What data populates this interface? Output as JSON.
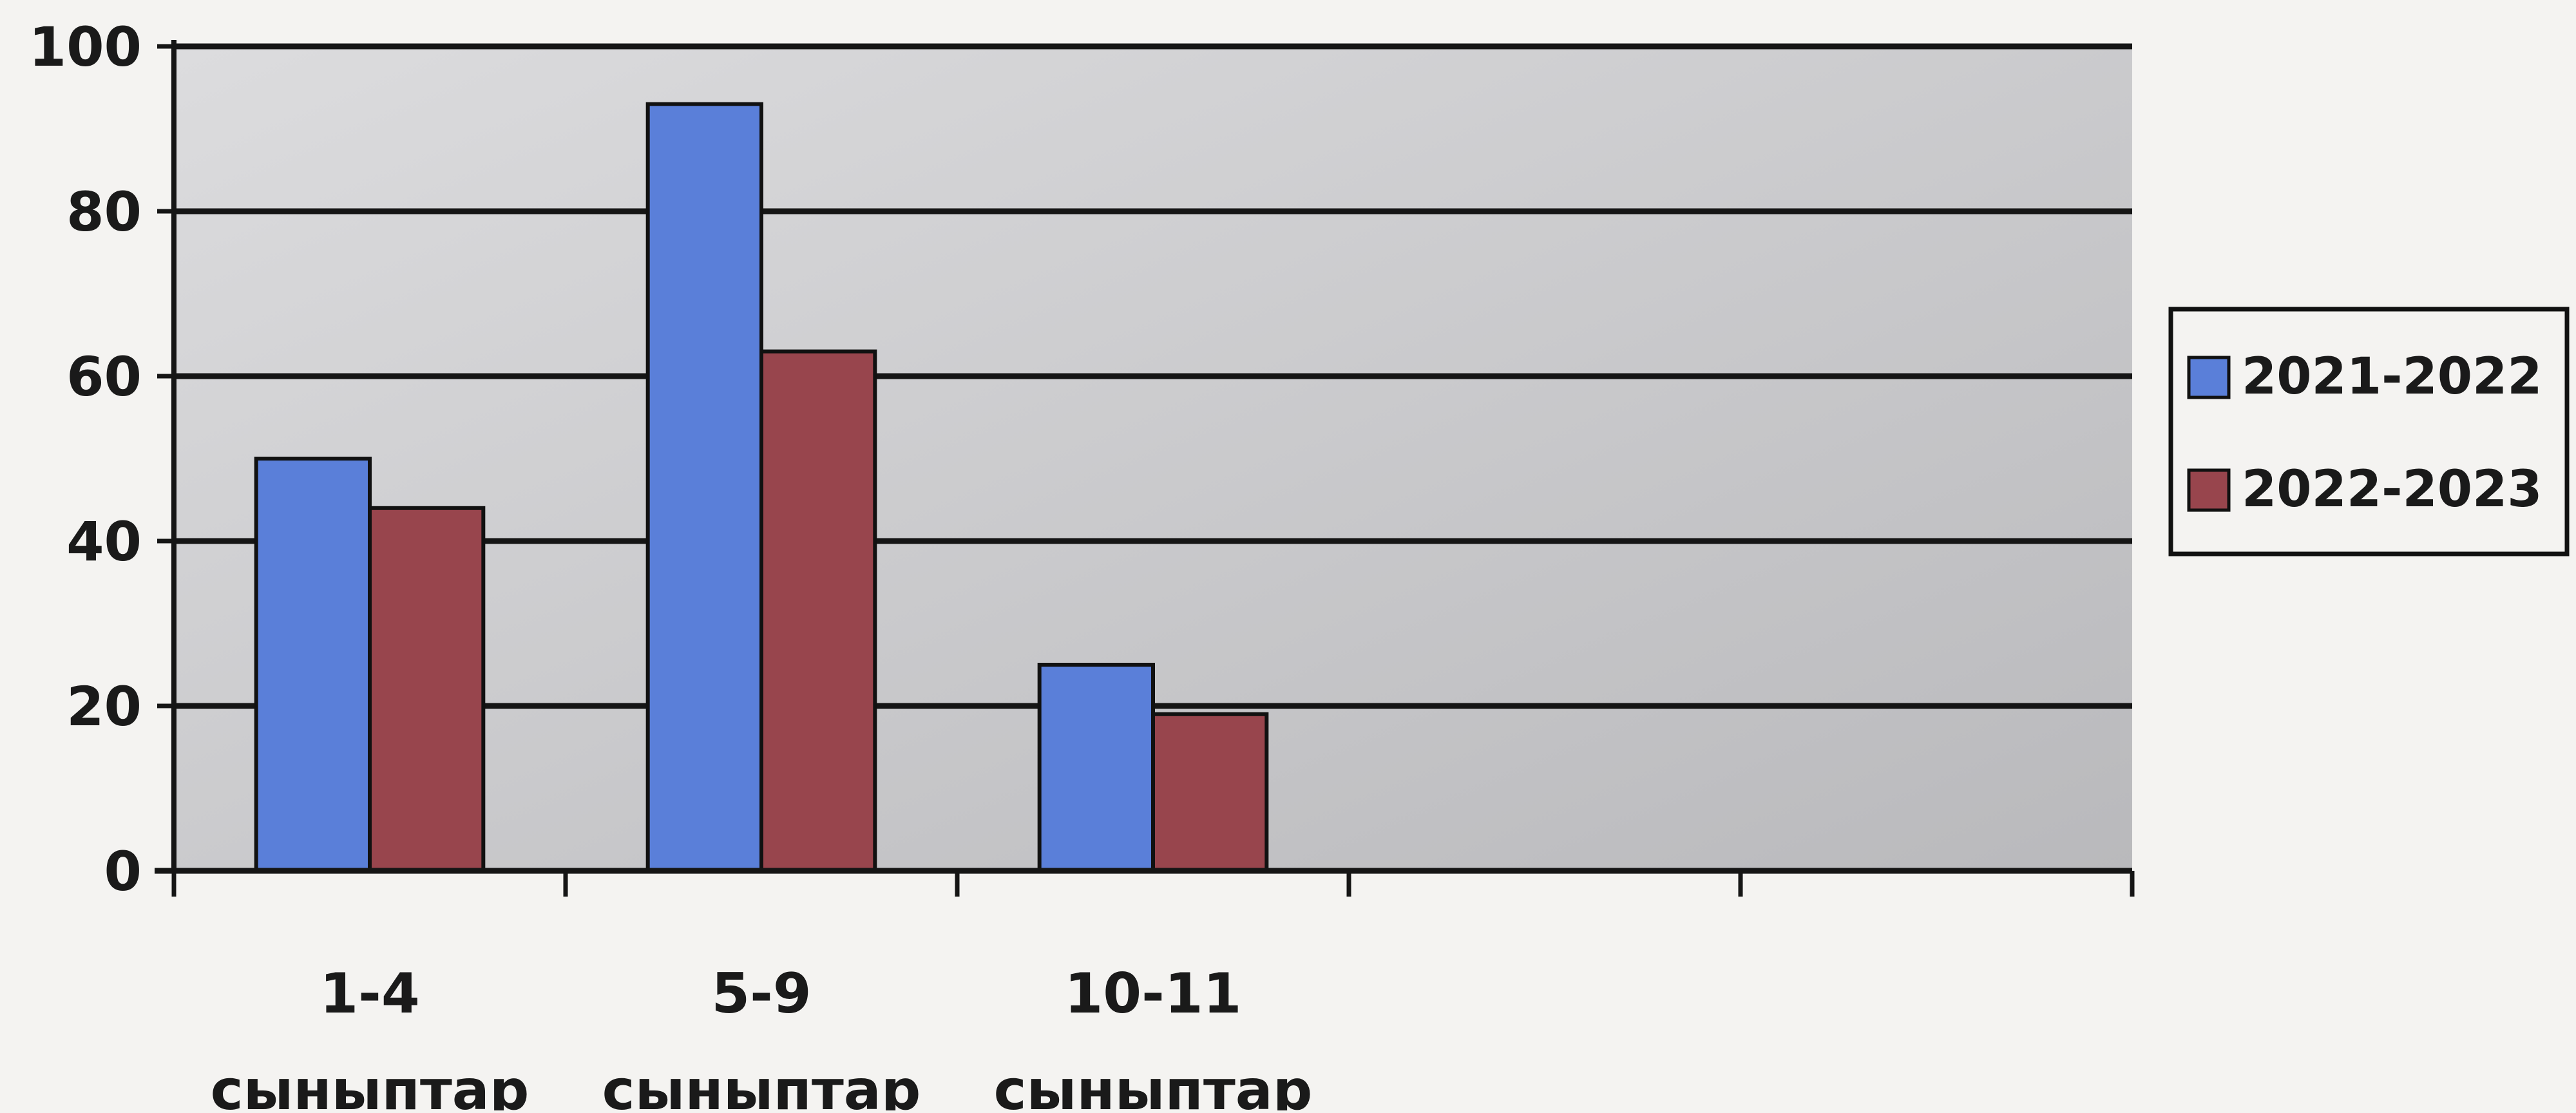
{
  "chart_data": {
    "type": "bar",
    "title": "",
    "xlabel": "",
    "ylabel": "",
    "categories": [
      [
        "1-4",
        "сыныптар"
      ],
      [
        "5-9",
        "сыныптар"
      ],
      [
        "10-11",
        "сыныптар"
      ],
      [
        "",
        ""
      ],
      [
        "",
        ""
      ]
    ],
    "series": [
      {
        "name": "2021-2022",
        "color": "#5a7fd9",
        "values": [
          50,
          93,
          25,
          null,
          null
        ]
      },
      {
        "name": "2022-2023",
        "color": "#98454d",
        "values": [
          44,
          63,
          19,
          null,
          null
        ]
      }
    ],
    "ylim": [
      0,
      100
    ],
    "yticks": [
      "0",
      "20",
      "40",
      "60",
      "80",
      "100"
    ],
    "grid": true,
    "legend": "right",
    "plot_background": "#c8c8ca",
    "gridline_color": "#151515"
  }
}
